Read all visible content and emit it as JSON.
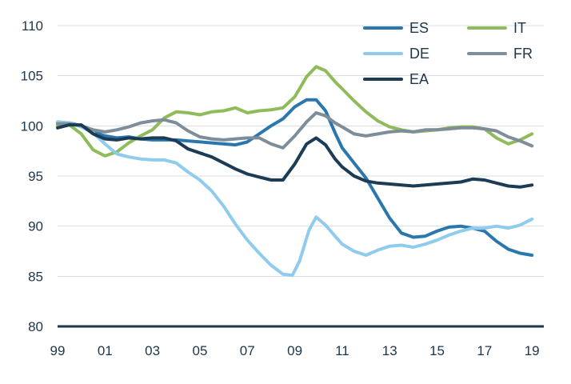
{
  "chart_data": {
    "type": "line",
    "title": "",
    "xlabel": "",
    "ylabel": "",
    "ylim": [
      80,
      110
    ],
    "xlim": [
      1999,
      2019.5
    ],
    "yticks": [
      80,
      85,
      90,
      95,
      100,
      105,
      110
    ],
    "ytick_labels": [
      "80",
      "85",
      "90",
      "95",
      "100",
      "105",
      "110"
    ],
    "xticks": [
      1999,
      2001,
      2003,
      2005,
      2007,
      2009,
      2011,
      2013,
      2015,
      2017,
      2019
    ],
    "xtick_labels": [
      "99",
      "01",
      "03",
      "05",
      "07",
      "09",
      "11",
      "13",
      "15",
      "17",
      "19"
    ],
    "grid": "horizontal",
    "legend_position": "top-right",
    "series": [
      {
        "name": "ES",
        "color": "#2a77ae",
        "points": [
          [
            1999,
            100.3
          ],
          [
            1999.5,
            100.3
          ],
          [
            2000,
            100.0
          ],
          [
            2000.5,
            99.4
          ],
          [
            2001,
            99.0
          ],
          [
            2001.5,
            98.8
          ],
          [
            2002,
            98.9
          ],
          [
            2002.5,
            98.7
          ],
          [
            2003,
            98.6
          ],
          [
            2003.5,
            98.6
          ],
          [
            2004,
            98.6
          ],
          [
            2004.5,
            98.5
          ],
          [
            2005,
            98.4
          ],
          [
            2005.5,
            98.3
          ],
          [
            2006,
            98.2
          ],
          [
            2006.5,
            98.1
          ],
          [
            2007,
            98.4
          ],
          [
            2007.5,
            99.2
          ],
          [
            2008,
            100.0
          ],
          [
            2008.5,
            100.7
          ],
          [
            2009,
            101.9
          ],
          [
            2009.5,
            102.6
          ],
          [
            2009.9,
            102.6
          ],
          [
            2010.3,
            101.5
          ],
          [
            2010.7,
            99.3
          ],
          [
            2011,
            97.8
          ],
          [
            2011.5,
            96.3
          ],
          [
            2012,
            94.8
          ],
          [
            2012.5,
            92.8
          ],
          [
            2013,
            90.8
          ],
          [
            2013.5,
            89.3
          ],
          [
            2014,
            88.9
          ],
          [
            2014.5,
            89.0
          ],
          [
            2015,
            89.5
          ],
          [
            2015.5,
            89.9
          ],
          [
            2016,
            90.0
          ],
          [
            2016.5,
            89.8
          ],
          [
            2017,
            89.5
          ],
          [
            2017.5,
            88.5
          ],
          [
            2018,
            87.7
          ],
          [
            2018.5,
            87.3
          ],
          [
            2019,
            87.1
          ]
        ]
      },
      {
        "name": "IT",
        "color": "#8fbc5b",
        "points": [
          [
            1999,
            100.0
          ],
          [
            1999.5,
            100.1
          ],
          [
            2000,
            99.2
          ],
          [
            2000.5,
            97.6
          ],
          [
            2001,
            97.0
          ],
          [
            2001.5,
            97.4
          ],
          [
            2002,
            98.3
          ],
          [
            2002.5,
            99.0
          ],
          [
            2003,
            99.6
          ],
          [
            2003.5,
            100.8
          ],
          [
            2004,
            101.4
          ],
          [
            2004.5,
            101.3
          ],
          [
            2005,
            101.1
          ],
          [
            2005.5,
            101.4
          ],
          [
            2006,
            101.5
          ],
          [
            2006.5,
            101.8
          ],
          [
            2007,
            101.3
          ],
          [
            2007.5,
            101.5
          ],
          [
            2008,
            101.6
          ],
          [
            2008.5,
            101.8
          ],
          [
            2009,
            102.9
          ],
          [
            2009.5,
            104.9
          ],
          [
            2009.9,
            105.9
          ],
          [
            2010.3,
            105.5
          ],
          [
            2010.7,
            104.4
          ],
          [
            2011,
            103.7
          ],
          [
            2011.5,
            102.5
          ],
          [
            2012,
            101.4
          ],
          [
            2012.5,
            100.5
          ],
          [
            2013,
            99.9
          ],
          [
            2013.5,
            99.6
          ],
          [
            2014,
            99.4
          ],
          [
            2014.5,
            99.5
          ],
          [
            2015,
            99.6
          ],
          [
            2015.5,
            99.8
          ],
          [
            2016,
            99.9
          ],
          [
            2016.5,
            99.9
          ],
          [
            2017,
            99.7
          ],
          [
            2017.5,
            98.8
          ],
          [
            2018,
            98.2
          ],
          [
            2018.5,
            98.6
          ],
          [
            2019,
            99.2
          ]
        ]
      },
      {
        "name": "DE",
        "color": "#8fcbed",
        "points": [
          [
            1999,
            100.4
          ],
          [
            1999.5,
            100.3
          ],
          [
            2000,
            99.9
          ],
          [
            2000.5,
            99.3
          ],
          [
            2001,
            98.2
          ],
          [
            2001.5,
            97.2
          ],
          [
            2002,
            96.9
          ],
          [
            2002.5,
            96.7
          ],
          [
            2003,
            96.6
          ],
          [
            2003.5,
            96.6
          ],
          [
            2004,
            96.3
          ],
          [
            2004.5,
            95.4
          ],
          [
            2005,
            94.6
          ],
          [
            2005.5,
            93.5
          ],
          [
            2006,
            92.0
          ],
          [
            2006.5,
            90.2
          ],
          [
            2007,
            88.6
          ],
          [
            2007.5,
            87.3
          ],
          [
            2008,
            86.1
          ],
          [
            2008.5,
            85.2
          ],
          [
            2008.9,
            85.1
          ],
          [
            2009.2,
            86.5
          ],
          [
            2009.6,
            89.6
          ],
          [
            2009.9,
            90.9
          ],
          [
            2010.3,
            90.1
          ],
          [
            2010.7,
            89.0
          ],
          [
            2011,
            88.2
          ],
          [
            2011.5,
            87.5
          ],
          [
            2012,
            87.1
          ],
          [
            2012.5,
            87.6
          ],
          [
            2013,
            88.0
          ],
          [
            2013.5,
            88.1
          ],
          [
            2014,
            87.9
          ],
          [
            2014.5,
            88.2
          ],
          [
            2015,
            88.6
          ],
          [
            2015.5,
            89.1
          ],
          [
            2016,
            89.5
          ],
          [
            2016.5,
            89.8
          ],
          [
            2017,
            89.8
          ],
          [
            2017.5,
            90.0
          ],
          [
            2018,
            89.8
          ],
          [
            2018.5,
            90.1
          ],
          [
            2019,
            90.7
          ]
        ]
      },
      {
        "name": "FR",
        "color": "#7e8d98",
        "points": [
          [
            1999,
            100.2
          ],
          [
            1999.5,
            100.2
          ],
          [
            2000,
            100.0
          ],
          [
            2000.5,
            99.6
          ],
          [
            2001,
            99.4
          ],
          [
            2001.5,
            99.6
          ],
          [
            2002,
            99.9
          ],
          [
            2002.5,
            100.3
          ],
          [
            2003,
            100.5
          ],
          [
            2003.5,
            100.6
          ],
          [
            2004,
            100.3
          ],
          [
            2004.5,
            99.5
          ],
          [
            2005,
            98.9
          ],
          [
            2005.5,
            98.7
          ],
          [
            2006,
            98.6
          ],
          [
            2006.5,
            98.7
          ],
          [
            2007,
            98.8
          ],
          [
            2007.5,
            98.8
          ],
          [
            2008,
            98.2
          ],
          [
            2008.5,
            97.8
          ],
          [
            2009,
            99.0
          ],
          [
            2009.5,
            100.4
          ],
          [
            2009.9,
            101.3
          ],
          [
            2010.3,
            101.0
          ],
          [
            2010.7,
            100.3
          ],
          [
            2011,
            99.9
          ],
          [
            2011.5,
            99.2
          ],
          [
            2012,
            99.0
          ],
          [
            2012.5,
            99.2
          ],
          [
            2013,
            99.4
          ],
          [
            2013.5,
            99.5
          ],
          [
            2014,
            99.4
          ],
          [
            2014.5,
            99.6
          ],
          [
            2015,
            99.6
          ],
          [
            2015.5,
            99.7
          ],
          [
            2016,
            99.8
          ],
          [
            2016.5,
            99.8
          ],
          [
            2017,
            99.7
          ],
          [
            2017.5,
            99.5
          ],
          [
            2018,
            98.9
          ],
          [
            2018.5,
            98.5
          ],
          [
            2019,
            98.0
          ]
        ]
      },
      {
        "name": "EA",
        "color": "#1c3b55",
        "points": [
          [
            1999,
            99.8
          ],
          [
            1999.5,
            100.1
          ],
          [
            2000,
            100.1
          ],
          [
            2000.5,
            99.2
          ],
          [
            2001,
            98.7
          ],
          [
            2001.5,
            98.6
          ],
          [
            2002,
            98.8
          ],
          [
            2002.5,
            98.7
          ],
          [
            2003,
            98.8
          ],
          [
            2003.5,
            98.8
          ],
          [
            2004,
            98.5
          ],
          [
            2004.5,
            97.7
          ],
          [
            2005,
            97.3
          ],
          [
            2005.5,
            96.9
          ],
          [
            2006,
            96.3
          ],
          [
            2006.5,
            95.7
          ],
          [
            2007,
            95.2
          ],
          [
            2007.5,
            94.9
          ],
          [
            2008,
            94.6
          ],
          [
            2008.5,
            94.6
          ],
          [
            2009,
            96.2
          ],
          [
            2009.5,
            98.2
          ],
          [
            2009.9,
            98.8
          ],
          [
            2010.3,
            98.1
          ],
          [
            2010.7,
            96.7
          ],
          [
            2011,
            95.9
          ],
          [
            2011.5,
            95.0
          ],
          [
            2012,
            94.5
          ],
          [
            2012.5,
            94.3
          ],
          [
            2013,
            94.2
          ],
          [
            2013.5,
            94.1
          ],
          [
            2014,
            94.0
          ],
          [
            2014.5,
            94.1
          ],
          [
            2015,
            94.2
          ],
          [
            2015.5,
            94.3
          ],
          [
            2016,
            94.4
          ],
          [
            2016.5,
            94.7
          ],
          [
            2017,
            94.6
          ],
          [
            2017.5,
            94.3
          ],
          [
            2018,
            94.0
          ],
          [
            2018.5,
            93.9
          ],
          [
            2019,
            94.1
          ]
        ]
      }
    ]
  }
}
